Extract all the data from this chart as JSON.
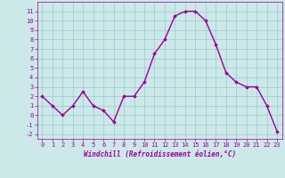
{
  "x": [
    0,
    1,
    2,
    3,
    4,
    5,
    6,
    7,
    8,
    9,
    10,
    11,
    12,
    13,
    14,
    15,
    16,
    17,
    18,
    19,
    20,
    21,
    22,
    23
  ],
  "y": [
    2,
    1,
    0,
    1,
    2.5,
    1,
    0.5,
    -0.7,
    2,
    2,
    3.5,
    6.5,
    8,
    10.5,
    11,
    11,
    10,
    7.5,
    4.5,
    3.5,
    3,
    3,
    1,
    -1.7
  ],
  "line_color": "#990099",
  "marker": "D",
  "marker_size": 1.8,
  "bg_color": "#cce8e8",
  "grid_color": "#99cccc",
  "xlabel": "Windchill (Refroidissement éolien,°C)",
  "xlabel_color": "#990099",
  "tick_color": "#990099",
  "ylim": [
    -2.5,
    12
  ],
  "xlim": [
    -0.5,
    23.5
  ],
  "yticks": [
    -2,
    -1,
    0,
    1,
    2,
    3,
    4,
    5,
    6,
    7,
    8,
    9,
    10,
    11
  ],
  "xticks": [
    0,
    1,
    2,
    3,
    4,
    5,
    6,
    7,
    8,
    9,
    10,
    11,
    12,
    13,
    14,
    15,
    16,
    17,
    18,
    19,
    20,
    21,
    22,
    23
  ],
  "tick_fontsize": 5.0,
  "xlabel_fontsize": 5.5,
  "linewidth": 1.0
}
